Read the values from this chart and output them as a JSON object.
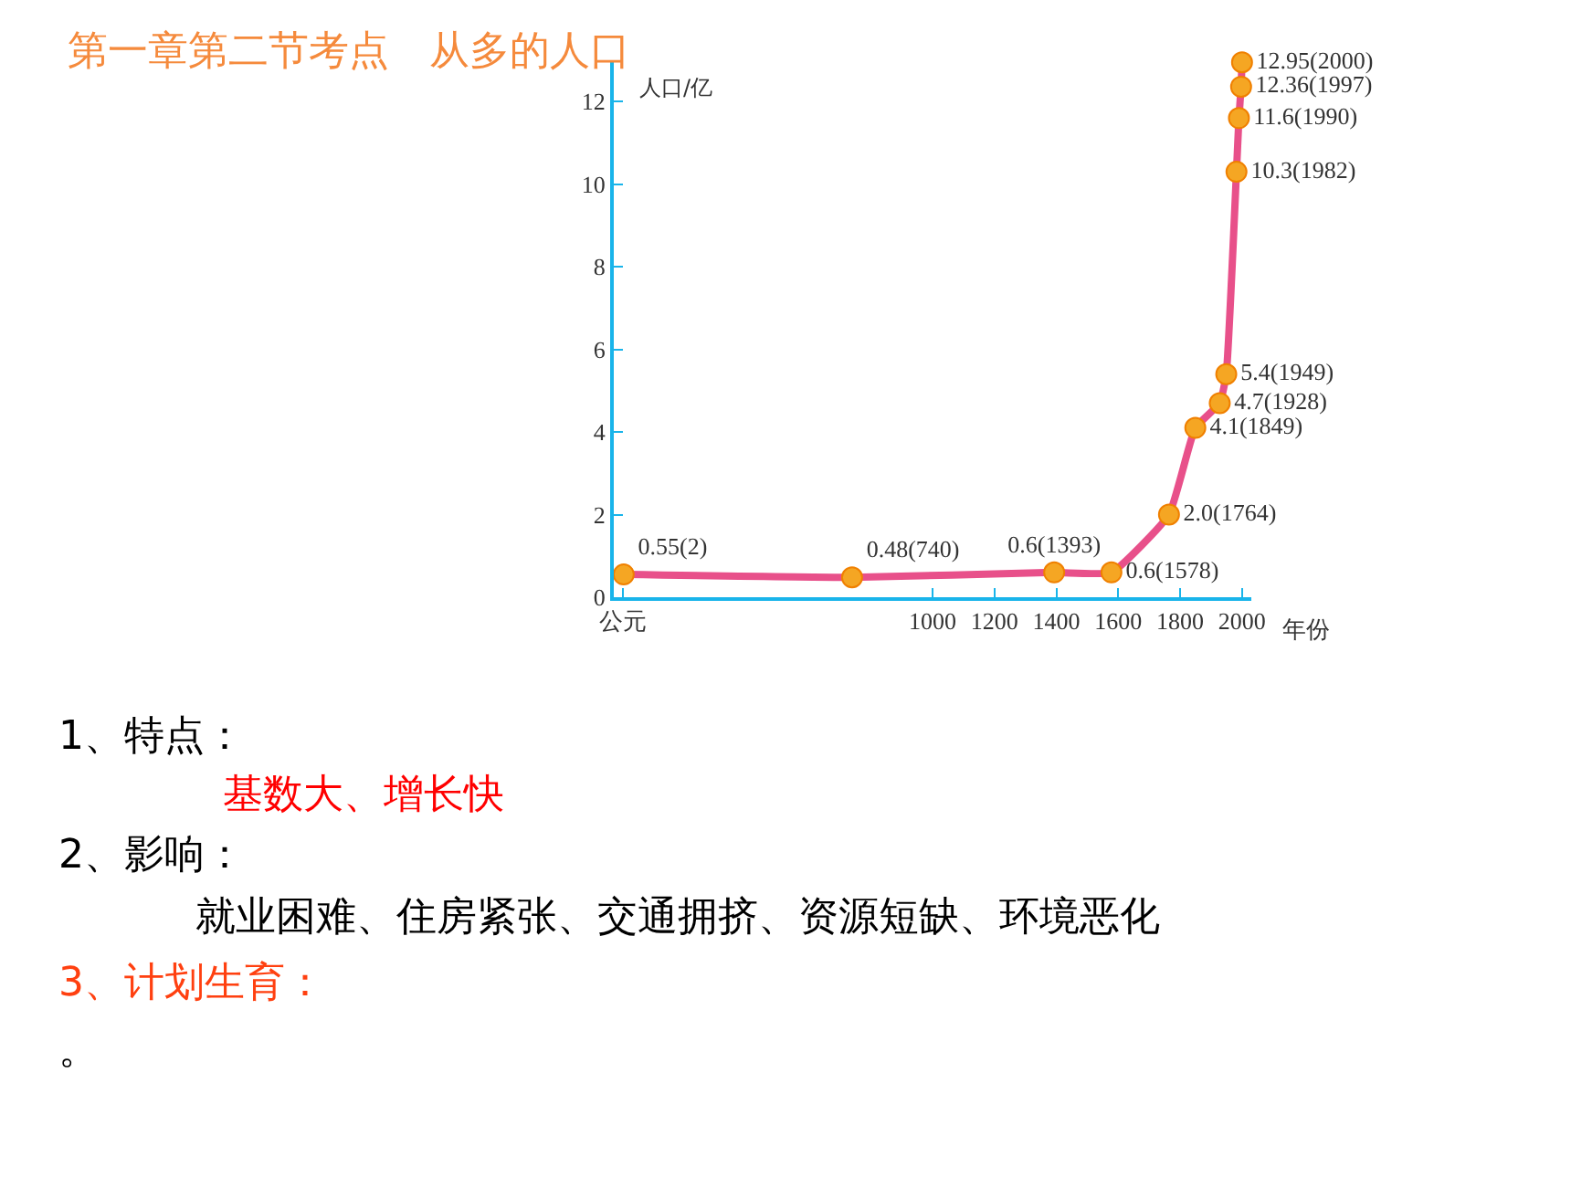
{
  "chart_data": {
    "type": "line",
    "title": "第一章第二节考点　从多的人口",
    "xlabel": "年份",
    "ylabel": "人口/亿",
    "x": [
      2,
      740,
      1393,
      1578,
      1764,
      1849,
      1928,
      1949,
      1982,
      1990,
      1997,
      2000
    ],
    "series": [
      {
        "color": "#e8508a",
        "colors": [
          "#f5a623",
          "#f5a623",
          "#f5a623",
          "#f5a623",
          "#f5a623",
          "#f5a623",
          "#f5a623",
          "#f5a623",
          "#f5a623",
          "#f5a623",
          "#f5a623",
          "#f5a623"
        ],
        "values": [
          0.55,
          0.48,
          0.6,
          0.6,
          2.0,
          4.1,
          4.7,
          5.4,
          10.3,
          11.6,
          12.36,
          12.95
        ],
        "value_labels": [
          "0.55(2)",
          "0.48(740)",
          "0.6(1393)",
          "0.6(1578)",
          "2.0(1764)",
          "4.1(1849)",
          "4.7(1928)",
          "5.4(1949)",
          "10.3(1982)",
          "11.6(1990)",
          "12.36(1997)",
          "12.95(2000)"
        ]
      }
    ],
    "marker": "circle",
    "xlim": [
      -30,
      2030
    ],
    "xticks": [
      {
        "value": 0,
        "label": "公元"
      },
      1000,
      1200,
      1400,
      1600,
      1800,
      2000
    ],
    "ylim": [
      0,
      13
    ],
    "yticks": [
      0,
      2,
      4,
      6,
      8,
      10,
      12
    ],
    "legend": false,
    "annotations": [
      "1、特点：",
      "基数大、增长快",
      "2、影响：",
      "就业困难、住房紧张、交通拥挤、资源短缺、环境恶化",
      "3、计划生育：",
      "。"
    ]
  }
}
